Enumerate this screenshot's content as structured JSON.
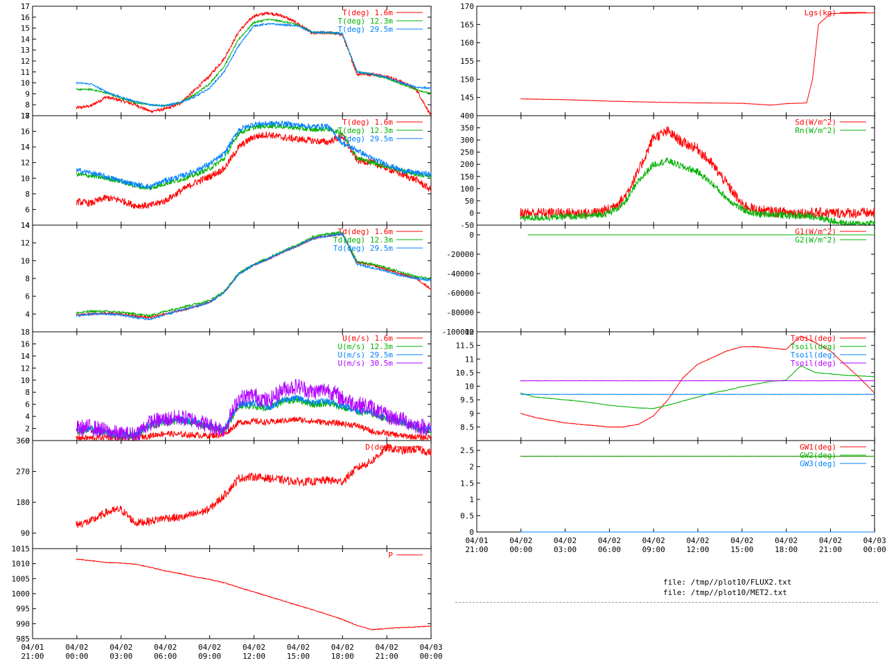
{
  "colors": {
    "red": "#ff0000",
    "green": "#00b000",
    "blue": "#0080ff",
    "purple": "#b000ff",
    "axis": "#000000"
  },
  "files": [
    "file: /tmp//plot10/FLUX2.txt",
    "file: /tmp//plot10/MET2.txt"
  ],
  "x_ticks": [
    {
      "date": "04/01",
      "time": "21:00"
    },
    {
      "date": "04/02",
      "time": "00:00"
    },
    {
      "date": "04/02",
      "time": "03:00"
    },
    {
      "date": "04/02",
      "time": "06:00"
    },
    {
      "date": "04/02",
      "time": "09:00"
    },
    {
      "date": "04/02",
      "time": "12:00"
    },
    {
      "date": "04/02",
      "time": "15:00"
    },
    {
      "date": "04/02",
      "time": "18:00"
    },
    {
      "date": "04/02",
      "time": "21:00"
    },
    {
      "date": "04/03",
      "time": "00:00"
    }
  ],
  "chart_data": [
    {
      "id": "t_temp",
      "type": "line",
      "ylim": [
        7,
        17
      ],
      "yticks": [
        7,
        8,
        9,
        10,
        11,
        12,
        13,
        14,
        15,
        16,
        17
      ],
      "x_hours": [
        0,
        1,
        2,
        3,
        4,
        5,
        6,
        7,
        8,
        9,
        10,
        11,
        12,
        13,
        14,
        15,
        16,
        17,
        18,
        19,
        20,
        21,
        22,
        23,
        24
      ],
      "series": [
        {
          "name": "T(deg)  1.6m",
          "color": "red",
          "noise": 0.15,
          "values": [
            7.7,
            7.9,
            8.7,
            8.4,
            8.0,
            7.4,
            7.6,
            8.1,
            9.3,
            10.6,
            12.2,
            14.7,
            16.1,
            16.4,
            16.1,
            15.4,
            14.5,
            14.6,
            14.4,
            10.8,
            10.8,
            10.6,
            10.1,
            9.4,
            7.0
          ]
        },
        {
          "name": "T(deg) 12.3m",
          "color": "green",
          "noise": 0.08,
          "values": [
            9.4,
            9.4,
            9.1,
            8.6,
            8.2,
            8.0,
            7.9,
            8.2,
            8.9,
            9.9,
            11.5,
            14.0,
            15.5,
            15.8,
            15.6,
            15.3,
            14.6,
            14.6,
            14.5,
            11.0,
            10.8,
            10.4,
            9.9,
            9.4,
            9.0
          ]
        },
        {
          "name": "T(deg) 29.5m",
          "color": "blue",
          "noise": 0.08,
          "values": [
            10.0,
            9.9,
            9.2,
            8.7,
            8.3,
            8.0,
            7.9,
            8.2,
            8.7,
            9.5,
            11.0,
            13.4,
            15.2,
            15.4,
            15.3,
            15.2,
            14.6,
            14.6,
            14.5,
            11.0,
            10.8,
            10.5,
            10.0,
            9.6,
            9.5
          ]
        }
      ]
    },
    {
      "id": "t_second",
      "type": "line",
      "ylim": [
        4,
        18
      ],
      "yticks": [
        4,
        6,
        8,
        10,
        12,
        14,
        16,
        18
      ],
      "x_hours": [
        0,
        1,
        2,
        3,
        4,
        5,
        6,
        7,
        8,
        9,
        10,
        11,
        12,
        13,
        14,
        15,
        16,
        17,
        18,
        19,
        20,
        21,
        22,
        23,
        24
      ],
      "series": [
        {
          "name": "T(deg)  1.6m",
          "color": "red",
          "noise": 0.45,
          "values": [
            7.0,
            6.8,
            7.5,
            7.2,
            6.5,
            6.5,
            7.1,
            8.3,
            9.4,
            10.2,
            11.2,
            14.0,
            15.3,
            15.6,
            15.2,
            15.0,
            14.8,
            14.6,
            15.4,
            12.3,
            12.0,
            11.3,
            10.5,
            9.8,
            8.5
          ]
        },
        {
          "name": "T(deg) 12.3m",
          "color": "green",
          "noise": 0.3,
          "values": [
            10.5,
            10.3,
            10.0,
            9.6,
            9.0,
            8.7,
            9.3,
            9.8,
            10.4,
            11.2,
            12.5,
            15.8,
            16.5,
            16.7,
            16.6,
            16.4,
            16.2,
            16.3,
            15.8,
            12.6,
            12.0,
            11.5,
            11.0,
            10.5,
            10.2
          ]
        },
        {
          "name": "T(deg) 29.5m",
          "color": "blue",
          "noise": 0.35,
          "values": [
            11.0,
            10.7,
            10.2,
            9.7,
            9.2,
            8.9,
            9.7,
            10.2,
            10.9,
            11.8,
            13.1,
            16.2,
            16.9,
            17.0,
            17.0,
            16.8,
            16.6,
            16.7,
            14.5,
            13.6,
            12.5,
            11.8,
            11.0,
            10.7,
            10.5
          ]
        }
      ]
    },
    {
      "id": "td_dew",
      "type": "line",
      "ylim": [
        2,
        14
      ],
      "yticks": [
        4,
        6,
        8,
        10,
        12,
        14
      ],
      "x_hours": [
        0,
        1,
        2,
        3,
        4,
        5,
        6,
        7,
        8,
        9,
        10,
        11,
        12,
        13,
        14,
        15,
        16,
        17,
        18,
        19,
        20,
        21,
        22,
        23,
        24
      ],
      "series": [
        {
          "name": "Td(deg)  1.6m",
          "color": "red",
          "noise": 0.12,
          "values": [
            3.9,
            4.0,
            4.1,
            4.0,
            3.8,
            3.6,
            4.0,
            4.4,
            4.8,
            5.3,
            6.4,
            8.5,
            9.5,
            10.2,
            11.0,
            11.7,
            12.5,
            12.8,
            13.0,
            9.8,
            9.5,
            9.0,
            8.5,
            8.0,
            6.8
          ]
        },
        {
          "name": "Td(deg) 12.3m",
          "color": "green",
          "noise": 0.12,
          "values": [
            4.1,
            4.3,
            4.3,
            4.2,
            4.0,
            3.8,
            4.3,
            4.7,
            5.1,
            5.5,
            6.5,
            8.6,
            9.6,
            10.3,
            11.1,
            11.8,
            12.7,
            13.0,
            13.2,
            9.9,
            9.6,
            9.2,
            8.7,
            8.2,
            8.0
          ]
        },
        {
          "name": "Td(deg) 29.5m",
          "color": "blue",
          "noise": 0.12,
          "values": [
            3.8,
            4.0,
            4.0,
            3.9,
            3.6,
            3.4,
            3.9,
            4.4,
            4.8,
            5.3,
            6.4,
            8.5,
            9.5,
            10.2,
            11.0,
            11.7,
            12.5,
            12.8,
            13.0,
            9.6,
            9.2,
            8.8,
            8.3,
            8.0,
            7.8
          ]
        }
      ]
    },
    {
      "id": "u_wind",
      "type": "line",
      "ylim": [
        0,
        18
      ],
      "yticks": [
        0,
        2,
        4,
        6,
        8,
        10,
        12,
        14,
        16,
        18
      ],
      "x_hours": [
        0,
        1,
        2,
        3,
        4,
        5,
        6,
        7,
        8,
        9,
        10,
        11,
        12,
        13,
        14,
        15,
        16,
        17,
        18,
        19,
        20,
        21,
        22,
        23,
        24
      ],
      "series": [
        {
          "name": "U(m/s)  1.6m",
          "color": "red",
          "noise": 0.5,
          "values": [
            0.5,
            0.4,
            0.6,
            0.3,
            0.5,
            0.8,
            1.2,
            1.0,
            0.9,
            0.8,
            1.0,
            3.0,
            3.2,
            3.0,
            3.3,
            3.5,
            3.2,
            3.0,
            2.8,
            2.5,
            1.5,
            1.2,
            0.8,
            0.6,
            0.5
          ]
        },
        {
          "name": "U(m/s) 12.3m",
          "color": "green",
          "noise": 0.6,
          "values": [
            1.5,
            1.8,
            1.2,
            0.8,
            0.9,
            2.5,
            3.0,
            3.2,
            3.0,
            2.2,
            1.5,
            5.8,
            5.8,
            5.2,
            6.5,
            6.8,
            6.0,
            6.2,
            5.5,
            4.8,
            4.5,
            3.5,
            3.0,
            2.0,
            1.5
          ]
        },
        {
          "name": "U(m/s) 29.5m",
          "color": "blue",
          "noise": 0.6,
          "values": [
            1.8,
            2.0,
            1.5,
            1.0,
            1.0,
            2.8,
            3.3,
            3.5,
            3.2,
            2.4,
            1.8,
            6.0,
            6.2,
            5.5,
            6.8,
            7.0,
            6.3,
            6.5,
            5.8,
            5.0,
            4.8,
            3.7,
            3.2,
            2.2,
            1.8
          ]
        },
        {
          "name": "U(m/s) 30.5m",
          "color": "purple",
          "noise": 1.4,
          "values": [
            2.0,
            2.2,
            1.6,
            1.0,
            1.0,
            3.0,
            3.5,
            3.8,
            3.4,
            2.5,
            1.8,
            7.0,
            7.5,
            6.5,
            8.5,
            9.0,
            8.0,
            8.5,
            7.0,
            6.0,
            5.5,
            4.0,
            3.5,
            2.5,
            2.0
          ]
        }
      ]
    },
    {
      "id": "d_dir",
      "type": "line",
      "ylim": [
        45,
        360
      ],
      "yticks": [
        90,
        180,
        270,
        360
      ],
      "x_hours": [
        0,
        1,
        2,
        3,
        4,
        5,
        6,
        7,
        8,
        9,
        10,
        11,
        12,
        13,
        14,
        15,
        16,
        17,
        18,
        19,
        20,
        21,
        22,
        23,
        24
      ],
      "series": [
        {
          "name": "D(deg)",
          "color": "red",
          "noise": 12,
          "values": [
            115,
            125,
            150,
            160,
            120,
            125,
            135,
            135,
            145,
            160,
            200,
            250,
            255,
            250,
            245,
            240,
            240,
            245,
            240,
            280,
            300,
            340,
            330,
            335,
            325
          ]
        }
      ]
    },
    {
      "id": "p_press",
      "type": "line",
      "ylim": [
        985,
        1015
      ],
      "yticks": [
        985,
        990,
        995,
        1000,
        1005,
        1010,
        1015
      ],
      "x_hours": [
        0,
        1,
        2,
        3,
        4,
        5,
        6,
        7,
        8,
        9,
        10,
        11,
        12,
        13,
        14,
        15,
        16,
        17,
        18,
        19,
        20,
        21,
        22,
        23,
        24
      ],
      "series": [
        {
          "name": "P",
          "color": "red",
          "noise": 0.12,
          "values": [
            1011.5,
            1011.0,
            1010.4,
            1010.2,
            1009.8,
            1008.8,
            1007.6,
            1006.7,
            1005.6,
            1004.8,
            1003.6,
            1002.1,
            1000.6,
            999.1,
            997.6,
            996.1,
            994.6,
            993.1,
            991.4,
            989.4,
            988.0,
            988.4,
            988.7,
            988.9,
            989.2
          ]
        }
      ]
    },
    {
      "id": "lgs",
      "type": "line",
      "ylim": [
        140,
        170
      ],
      "yticks": [
        145,
        150,
        155,
        160,
        165,
        170
      ],
      "x_hours": [
        0,
        3,
        6,
        9,
        12,
        15,
        17,
        18,
        19.4,
        19.8,
        20.2,
        21,
        24
      ],
      "series": [
        {
          "name": "Lgs(kg)",
          "color": "red",
          "noise": 0.05,
          "values": [
            144.6,
            144.4,
            144.0,
            143.7,
            143.5,
            143.4,
            142.9,
            143.3,
            143.5,
            150.0,
            165.0,
            168.0,
            168.2
          ]
        }
      ]
    },
    {
      "id": "rad",
      "type": "line",
      "ylim": [
        -50,
        400
      ],
      "yticks": [
        -50,
        0,
        50,
        100,
        150,
        200,
        250,
        300,
        350,
        400
      ],
      "x_hours": [
        0,
        1,
        2,
        3,
        4,
        5,
        6,
        7,
        8,
        9,
        10,
        11,
        12,
        13,
        14,
        15,
        16,
        17,
        18,
        19,
        20,
        21,
        22,
        23,
        24
      ],
      "series": [
        {
          "name": "Sd(W/m^2)",
          "color": "red",
          "noise": 22,
          "values": [
            0,
            0,
            0,
            0,
            0,
            0,
            15,
            60,
            170,
            310,
            335,
            290,
            265,
            200,
            120,
            35,
            12,
            6,
            3,
            0,
            0,
            0,
            0,
            0,
            0
          ]
        },
        {
          "name": "Rn(W/m^2)",
          "color": "green",
          "noise": 14,
          "values": [
            -20,
            -20,
            -18,
            -15,
            -15,
            -10,
            0,
            35,
            130,
            200,
            215,
            190,
            170,
            120,
            60,
            15,
            -5,
            -5,
            -10,
            -12,
            -15,
            -30,
            -45,
            -45,
            -40
          ]
        }
      ]
    },
    {
      "id": "ground_flux",
      "type": "line",
      "ylim": [
        -100000,
        10000
      ],
      "yticks": [
        -100000,
        -80000,
        -60000,
        -40000,
        -20000,
        0
      ],
      "x_hours": [
        0.5,
        24
      ],
      "series": [
        {
          "name": "G1(W/m^2)",
          "color": "red",
          "noise": 0,
          "values": [
            0,
            0
          ]
        },
        {
          "name": "G2(W/m^2)",
          "color": "green",
          "noise": 0,
          "values": [
            0,
            0
          ]
        }
      ]
    },
    {
      "id": "tsoil",
      "type": "line",
      "ylim": [
        8,
        12
      ],
      "yticks": [
        8.5,
        9,
        9.5,
        10,
        10.5,
        11,
        11.5,
        12
      ],
      "x_hours": [
        0,
        1,
        2,
        3,
        4,
        5,
        6,
        7,
        8,
        9,
        10,
        11,
        12,
        13,
        14,
        15,
        16,
        17,
        18,
        19,
        20,
        21,
        22,
        23,
        24
      ],
      "series": [
        {
          "name": "Tsoil(deg)",
          "color": "red",
          "noise": 0.01,
          "values": [
            9.0,
            8.85,
            8.75,
            8.65,
            8.6,
            8.55,
            8.5,
            8.5,
            8.6,
            8.9,
            9.5,
            10.3,
            10.8,
            11.05,
            11.3,
            11.45,
            11.45,
            11.4,
            11.35,
            11.85,
            11.6,
            11.3,
            10.8,
            10.3,
            9.75
          ]
        },
        {
          "name": "Tsoil(deg)",
          "color": "green",
          "noise": 0.01,
          "values": [
            9.75,
            9.6,
            9.55,
            9.5,
            9.45,
            9.38,
            9.3,
            9.25,
            9.2,
            9.18,
            9.3,
            9.45,
            9.6,
            9.75,
            9.85,
            9.98,
            10.08,
            10.18,
            10.22,
            10.75,
            10.5,
            10.45,
            10.4,
            10.38,
            10.35
          ]
        },
        {
          "name": "Tsoil(deg)",
          "color": "blue",
          "noise": 0.008,
          "values": [
            9.7,
            9.7,
            9.7,
            9.7,
            9.7,
            9.7,
            9.7,
            9.7,
            9.7,
            9.7,
            9.7,
            9.7,
            9.7,
            9.7,
            9.7,
            9.7,
            9.7,
            9.7,
            9.7,
            9.7,
            9.7,
            9.7,
            9.7,
            9.7,
            9.7
          ]
        },
        {
          "name": "Tsoil(deg)",
          "color": "purple",
          "noise": 0.008,
          "values": [
            10.2,
            10.2,
            10.2,
            10.2,
            10.2,
            10.2,
            10.2,
            10.2,
            10.2,
            10.2,
            10.2,
            10.2,
            10.2,
            10.2,
            10.2,
            10.2,
            10.2,
            10.2,
            10.2,
            10.2,
            10.2,
            10.2,
            10.2,
            10.2,
            10.2
          ]
        }
      ]
    },
    {
      "id": "gw",
      "type": "line",
      "ylim": [
        0,
        2.8
      ],
      "yticks": [
        0,
        0.5,
        1,
        1.5,
        2,
        2.5
      ],
      "x_hours": [
        0,
        24
      ],
      "series": [
        {
          "name": "GW1(deg)",
          "color": "red",
          "noise": 0,
          "values": [
            2.32,
            2.32
          ]
        },
        {
          "name": "GW2(deg)",
          "color": "green",
          "noise": 0.005,
          "values": [
            2.32,
            2.32
          ]
        },
        {
          "name": "GW3(deg)",
          "color": "blue",
          "noise": 0,
          "values": [
            0,
            0
          ]
        }
      ]
    }
  ]
}
